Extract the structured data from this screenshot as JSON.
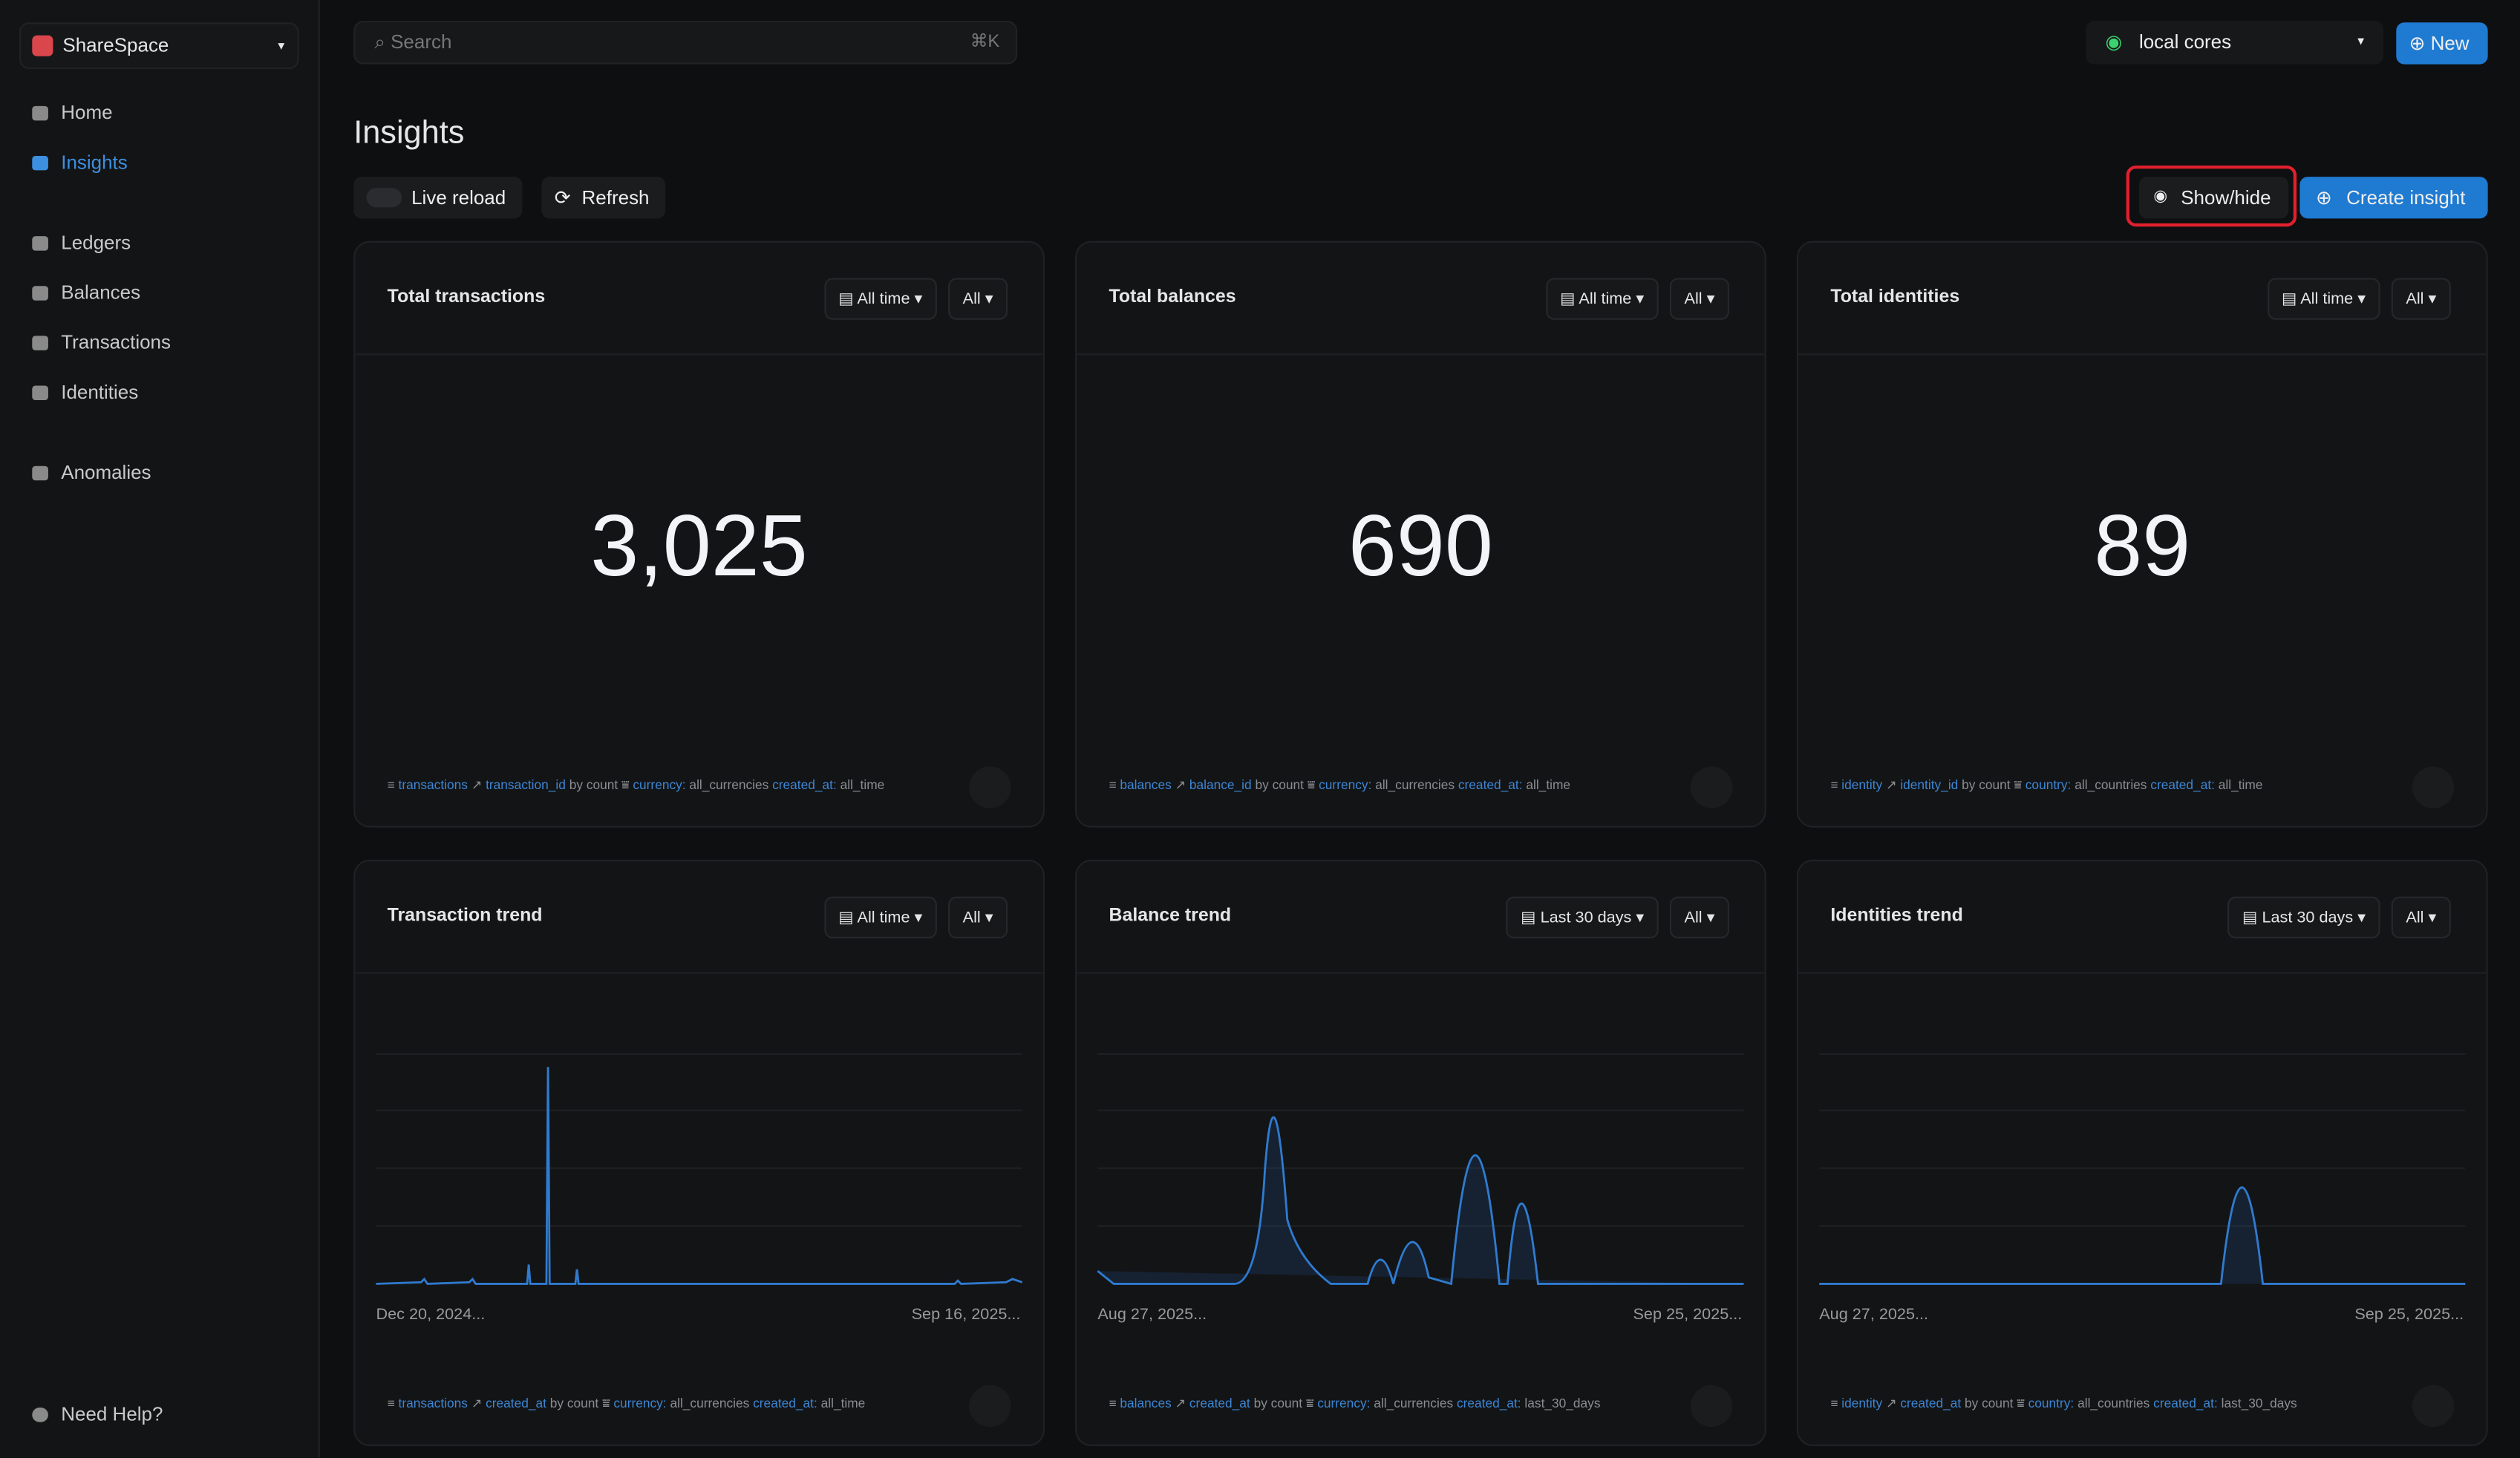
{
  "sidebar": {
    "brand": "ShareSpace",
    "nav": [
      "Home",
      "Insights",
      "Ledgers",
      "Balances",
      "Transactions",
      "Identities",
      "Anomalies"
    ],
    "help": "Need Help?"
  },
  "topbar": {
    "search": "Search",
    "shortcut": "⌘K",
    "environment": "local cores",
    "new": "New"
  },
  "page": {
    "title": "Insights",
    "live_reload": "Live reload",
    "refresh": "Refresh",
    "show_hide": "Show/hide",
    "create": "Create insight"
  },
  "cards": [
    {
      "title": "Total transactions",
      "range": "All time",
      "filter": "All",
      "value": "3,025",
      "footer": {
        "source": "transactions",
        "metric": "transaction_id",
        "agg": "by count",
        "filter_key": "currency:",
        "filter_val": "all_currencies",
        "filter2_key": "created_at:",
        "filter2_val": "all_time"
      }
    },
    {
      "title": "Total balances",
      "range": "All time",
      "filter": "All",
      "value": "690",
      "footer": {
        "source": "balances",
        "metric": "balance_id",
        "agg": "by count",
        "filter_key": "currency:",
        "filter_val": "all_currencies",
        "filter2_key": "created_at:",
        "filter2_val": "all_time"
      }
    },
    {
      "title": "Total identities",
      "range": "All time",
      "filter": "All",
      "value": "89",
      "footer": {
        "source": "identity",
        "metric": "identity_id",
        "agg": "by count",
        "filter_key": "country:",
        "filter_val": "all_countries",
        "filter2_key": "created_at:",
        "filter2_val": "all_time"
      }
    },
    {
      "title": "Transaction trend",
      "range": "All time",
      "filter": "All",
      "start": "Dec 20, 2024...",
      "end": "Sep 16, 2025...",
      "footer": {
        "source": "transactions",
        "metric": "created_at",
        "agg": "by count",
        "filter_key": "currency:",
        "filter_val": "all_currencies",
        "filter2_key": "created_at:",
        "filter2_val": "all_time"
      }
    },
    {
      "title": "Balance trend",
      "range": "Last 30 days",
      "filter": "All",
      "start": "Aug 27, 2025...",
      "end": "Sep 25, 2025...",
      "footer": {
        "source": "balances",
        "metric": "created_at",
        "agg": "by count",
        "filter_key": "currency:",
        "filter_val": "all_currencies",
        "filter2_key": "created_at:",
        "filter2_val": "last_30_days"
      }
    },
    {
      "title": "Identities trend",
      "range": "Last 30 days",
      "filter": "All",
      "start": "Aug 27, 2025...",
      "end": "Sep 25, 2025...",
      "footer": {
        "source": "identity",
        "metric": "created_at",
        "agg": "by count",
        "filter_key": "country:",
        "filter_val": "all_countries",
        "filter2_key": "created_at:",
        "filter2_val": "last_30_days"
      }
    }
  ]
}
